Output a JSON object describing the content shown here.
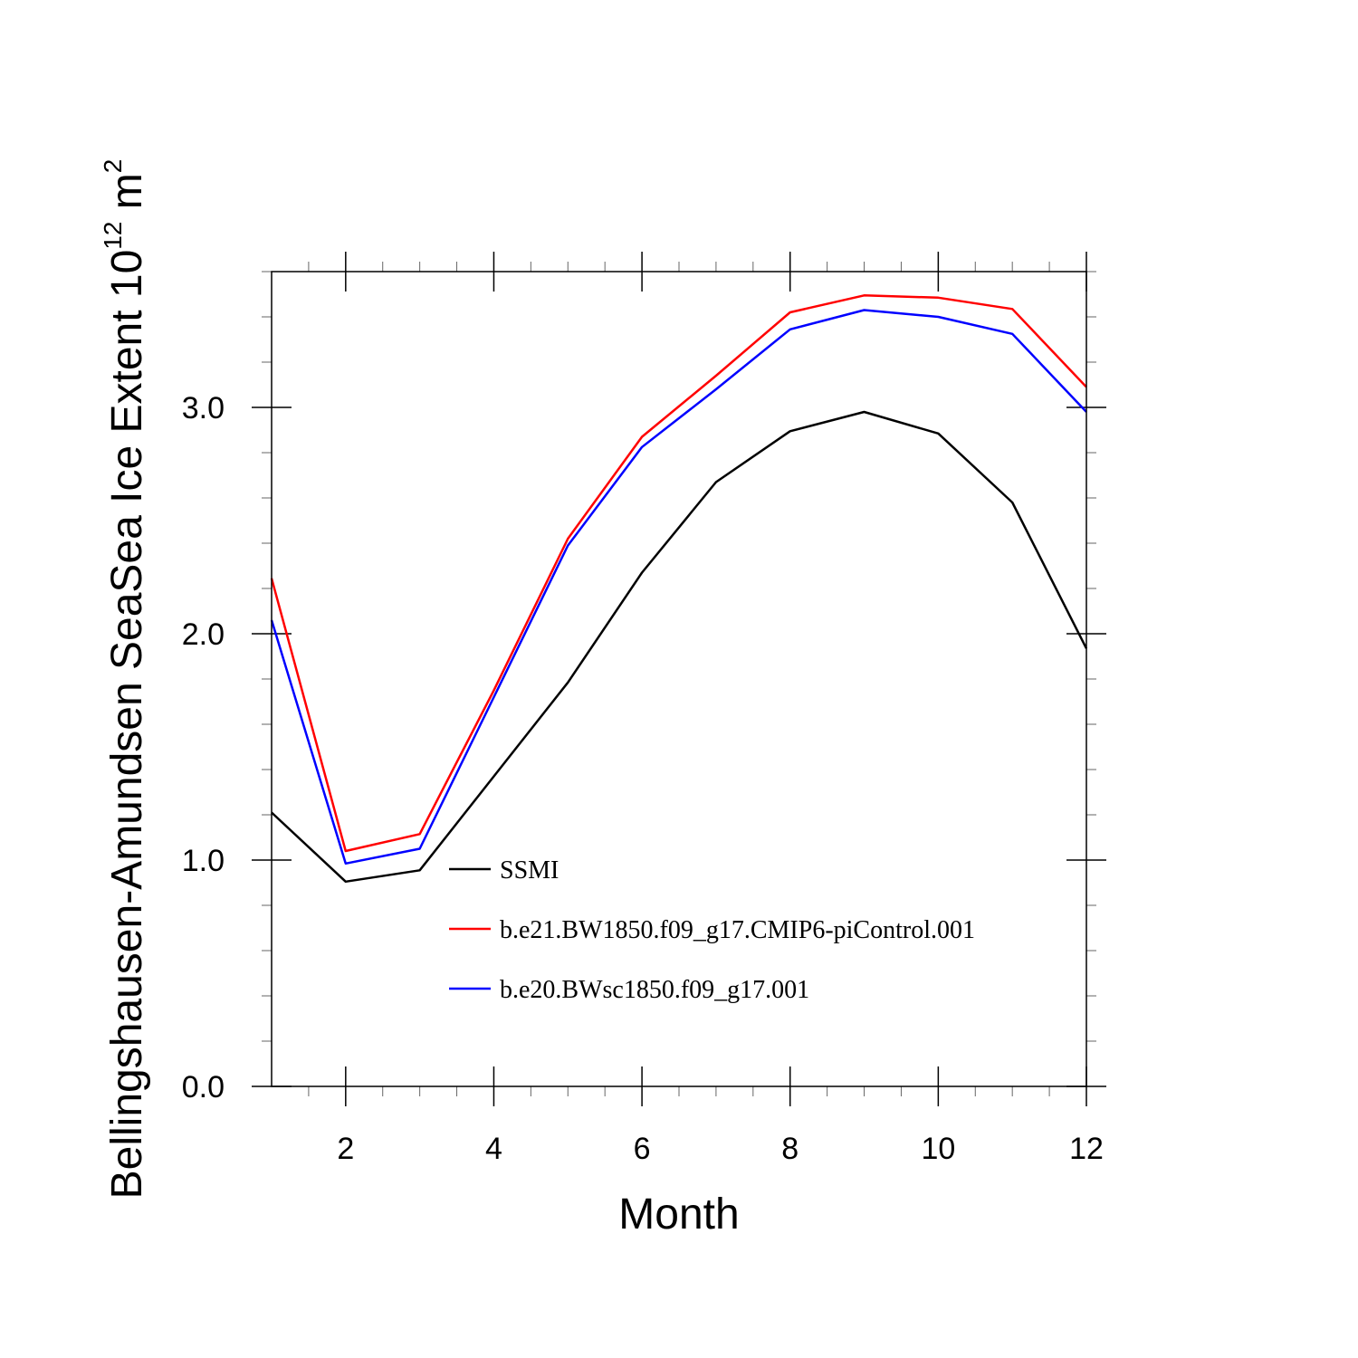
{
  "chart_data": {
    "type": "line",
    "title": "",
    "xlabel": "Month",
    "ylabel_main": "Bellingshausen-Amundsen SeaSea Ice Extent 10",
    "ylabel_exp": "12",
    "ylabel_unit": " m",
    "ylabel_unit_exp": "2",
    "xlim": [
      1,
      12
    ],
    "ylim": [
      0,
      3.6
    ],
    "x_ticks": [
      2,
      4,
      6,
      8,
      10,
      12
    ],
    "x_tick_labels": [
      "2",
      "4",
      "6",
      "8",
      "10",
      "12"
    ],
    "y_ticks": [
      0,
      1,
      2,
      3
    ],
    "y_tick_labels": [
      "0.0",
      "1.0",
      "2.0",
      "3.0"
    ],
    "x": [
      1,
      2,
      3,
      4,
      5,
      6,
      7,
      8,
      9,
      10,
      11,
      12
    ],
    "series": [
      {
        "name": "SSMI",
        "color": "#000000",
        "values": [
          1.21,
          0.905,
          0.955,
          1.37,
          1.785,
          2.27,
          2.67,
          2.895,
          2.98,
          2.885,
          2.58,
          1.935
        ]
      },
      {
        "name": "b.e21.BW1850.f09_g17.CMIP6-piControl.001",
        "color": "#ff0000",
        "values": [
          2.245,
          1.04,
          1.115,
          1.75,
          2.42,
          2.87,
          3.14,
          3.42,
          3.495,
          3.485,
          3.435,
          3.09
        ]
      },
      {
        "name": "b.e20.BWsc1850.f09_g17.001",
        "color": "#0000ff",
        "values": [
          2.06,
          0.985,
          1.05,
          1.72,
          2.39,
          2.825,
          3.08,
          3.345,
          3.43,
          3.4,
          3.325,
          2.98
        ]
      }
    ],
    "legend_position": "lower-middle inside plot"
  }
}
